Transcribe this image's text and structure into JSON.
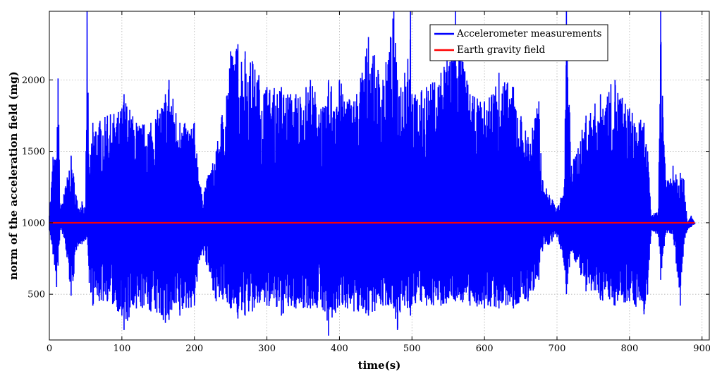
{
  "chart_data": {
    "type": "line",
    "title": "",
    "xlabel": "time(s)",
    "ylabel": "norm of the acceleration field (mg)",
    "xlim": [
      0,
      910
    ],
    "ylim": [
      180,
      2480
    ],
    "x_ticks": [
      0,
      100,
      200,
      300,
      400,
      500,
      600,
      700,
      800,
      900
    ],
    "y_ticks": [
      500,
      1000,
      1500,
      2000
    ],
    "grid": true,
    "legend_position": "top-right",
    "series": [
      {
        "name": "Accelerometer measurements",
        "color": "#0000ff",
        "x": [
          0,
          5,
          10,
          12,
          15,
          20,
          30,
          40,
          45,
          50,
          52,
          55,
          60,
          80,
          100,
          103,
          120,
          140,
          160,
          165,
          180,
          200,
          210,
          230,
          250,
          260,
          270,
          280,
          300,
          320,
          340,
          360,
          380,
          385,
          400,
          420,
          440,
          460,
          475,
          480,
          490,
          498,
          500,
          520,
          540,
          560,
          580,
          600,
          620,
          640,
          660,
          675,
          680,
          700,
          710,
          713,
          720,
          740,
          760,
          780,
          800,
          820,
          825,
          830,
          840,
          843,
          850,
          860,
          870,
          875,
          880,
          885,
          890
        ],
        "upper": [
          1050,
          1460,
          1450,
          2010,
          1100,
          1200,
          1470,
          1100,
          1150,
          1100,
          2480,
          1350,
          1700,
          1750,
          1800,
          1900,
          1700,
          1700,
          1900,
          2000,
          1700,
          1700,
          1200,
          1500,
          2200,
          2250,
          2200,
          2130,
          1950,
          1950,
          1900,
          2000,
          1800,
          2000,
          2000,
          1850,
          2300,
          2000,
          2480,
          2000,
          2050,
          2480,
          1900,
          1950,
          2050,
          2480,
          1900,
          1850,
          2050,
          1950,
          1600,
          1850,
          1300,
          1100,
          1250,
          2480,
          1400,
          1750,
          1900,
          2000,
          1800,
          1700,
          1500,
          1050,
          1100,
          2480,
          1300,
          1400,
          1350,
          1300,
          1000,
          1050,
          1000
        ],
        "lower": [
          950,
          780,
          550,
          700,
          950,
          900,
          490,
          850,
          850,
          880,
          900,
          580,
          420,
          450,
          350,
          250,
          400,
          380,
          300,
          320,
          350,
          420,
          800,
          450,
          400,
          330,
          350,
          380,
          420,
          350,
          400,
          400,
          380,
          210,
          420,
          380,
          350,
          420,
          400,
          250,
          420,
          350,
          430,
          420,
          420,
          450,
          420,
          400,
          400,
          400,
          450,
          600,
          800,
          900,
          700,
          500,
          800,
          520,
          460,
          420,
          450,
          360,
          500,
          950,
          900,
          600,
          930,
          920,
          420,
          850,
          950,
          970,
          990
        ]
      },
      {
        "name": "Earth gravity field",
        "color": "#ff0000",
        "x": [
          0,
          890
        ],
        "y": [
          1000,
          1000
        ]
      }
    ]
  }
}
